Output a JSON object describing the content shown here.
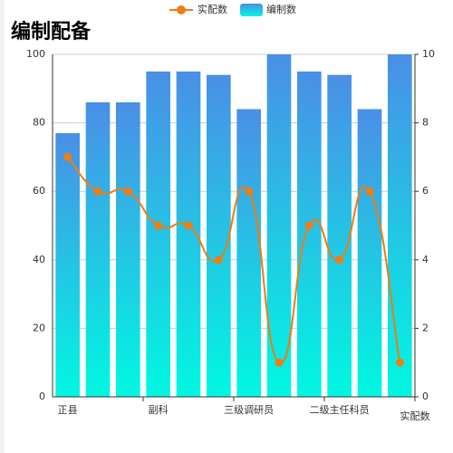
{
  "chart_data": {
    "type": "bar-line",
    "title": "编制配备",
    "categories": [
      "正县",
      null,
      null,
      "副科",
      null,
      null,
      "三级调研员",
      null,
      null,
      "二级主任科员",
      null,
      null
    ],
    "x_axis_label": "实配数",
    "series": [
      {
        "name": "实配数",
        "type": "line",
        "axis": "y2",
        "color": "#f07c12",
        "values": [
          7,
          6,
          6,
          5,
          5,
          4,
          6,
          1,
          5,
          4,
          6,
          1
        ]
      },
      {
        "name": "编制数",
        "type": "bar",
        "color": [
          "#4a8fe6",
          "#00f8e2"
        ],
        "values": [
          77,
          86,
          86,
          95,
          95,
          94,
          84,
          100,
          95,
          94,
          84,
          100
        ]
      }
    ],
    "ylim": [
      0,
      100
    ],
    "yticks": [
      0,
      20,
      40,
      60,
      80,
      100
    ],
    "y2lim": [
      0,
      10
    ],
    "y2ticks": [
      0,
      2,
      4,
      6,
      8,
      10
    ],
    "grid": true,
    "legend": "top"
  }
}
